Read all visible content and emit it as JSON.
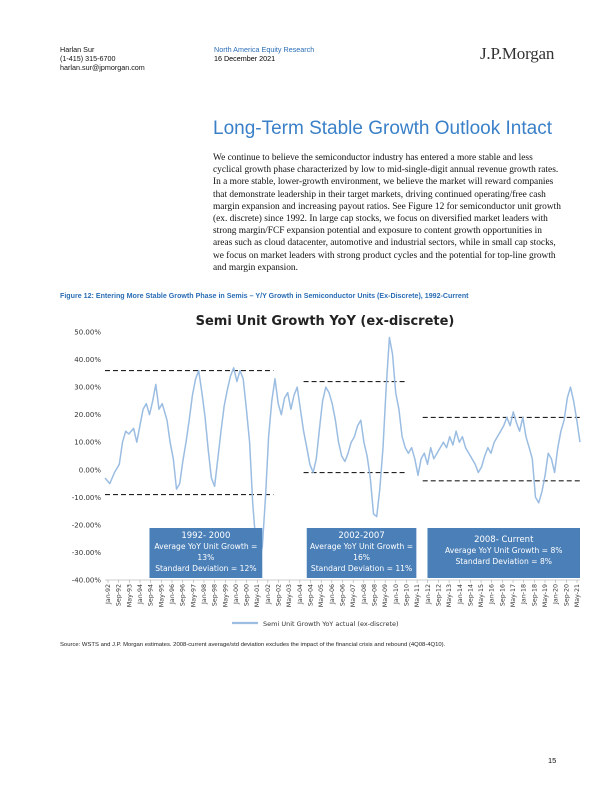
{
  "header": {
    "analyst_name": "Harlan Sur",
    "analyst_phone": "(1-415) 315-6700",
    "analyst_email": "harlan.sur@jpmorgan.com",
    "department": "North America Equity Research",
    "date": "16 December 2021",
    "logo": "J.P.Morgan"
  },
  "section_title": "Long-Term Stable Growth Outlook Intact",
  "body_paragraph": "We continue to believe the semiconductor industry has entered a more stable and less cyclical growth phase characterized by low to mid-single-digit annual revenue growth rates. In a more stable, lower-growth environment, we believe the market will reward companies that demonstrate leadership in their target markets, driving continued operating/free cash margin expansion and increasing payout ratios. See Figure 12 for semiconductor unit growth (ex. discrete) since 1992. In large cap stocks, we focus on diversified market leaders with strong margin/FCF expansion potential and exposure to content growth opportunities in areas such as cloud datacenter, automotive and industrial sectors, while in small cap stocks, we focus on market leaders with strong product cycles and the potential for top-line growth and margin expansion.",
  "figure_caption": "Figure 12: Entering More Stable Growth Phase in Semis – Y/Y Growth in Semiconductor Units (Ex-Discrete), 1992-Current",
  "source_note": "Source: WSTS and J.P. Morgan estimates. 2008-current average/std deviation excludes the impact of the financial crisis and rebound (4Q08-4Q10).",
  "page_number": "15",
  "colors": {
    "accent_blue": "#3a80c8",
    "series_line": "#9bbde2",
    "annotation_box": "#4a7fb8",
    "dashed_lines": "#222222"
  },
  "chart_data": {
    "type": "line",
    "title": "Semi Unit Growth YoY (ex-discrete)",
    "ylim": [
      -40,
      50
    ],
    "yticks": [
      50,
      40,
      30,
      20,
      10,
      0,
      -10,
      -20,
      -30,
      -40
    ],
    "ytick_labels": [
      "50.00%",
      "40.00%",
      "30.00%",
      "20.00%",
      "10.00%",
      "0.00%",
      "-10.00%",
      "-20.00%",
      "-30.00%",
      "-40.00%"
    ],
    "xlim": [
      1992.0,
      2021.9
    ],
    "x_tick_labels": [
      "Jan-92",
      "Sep-92",
      "May-93",
      "Jan-94",
      "Sep-94",
      "May-95",
      "Jan-96",
      "Sep-96",
      "May-97",
      "Jan-98",
      "Sep-98",
      "May-99",
      "Jan-00",
      "Sep-00",
      "May-01",
      "Jan-02",
      "Sep-02",
      "May-03",
      "Jan-04",
      "Sep-04",
      "May-05",
      "Jan-06",
      "Sep-06",
      "May-07",
      "Jan-08",
      "Sep-08",
      "May-09",
      "Jan-10",
      "Sep-10",
      "May-11",
      "Jan-12",
      "Sep-12",
      "May-13",
      "Jan-14",
      "Sep-14",
      "May-15",
      "Jan-16",
      "Sep-16",
      "May-17",
      "Jan-18",
      "Sep-18",
      "May-19",
      "Jan-20",
      "Sep-20",
      "May-21"
    ],
    "legend": "Semi Unit Growth YoY actual (ex-discrete)",
    "legend_position": "bottom",
    "grid": false,
    "series": [
      {
        "name": "Semi Unit Growth YoY actual (ex-discrete)",
        "points": [
          [
            1992.0,
            -3
          ],
          [
            1992.3,
            -5
          ],
          [
            1992.6,
            -1
          ],
          [
            1992.9,
            2
          ],
          [
            1993.1,
            10
          ],
          [
            1993.3,
            14
          ],
          [
            1993.5,
            13
          ],
          [
            1993.8,
            15
          ],
          [
            1994.0,
            10
          ],
          [
            1994.2,
            16
          ],
          [
            1994.4,
            22
          ],
          [
            1994.6,
            24
          ],
          [
            1994.8,
            20
          ],
          [
            1995.0,
            25
          ],
          [
            1995.2,
            31
          ],
          [
            1995.4,
            22
          ],
          [
            1995.6,
            24
          ],
          [
            1995.9,
            18
          ],
          [
            1996.1,
            10
          ],
          [
            1996.3,
            4
          ],
          [
            1996.5,
            -7
          ],
          [
            1996.7,
            -5
          ],
          [
            1996.9,
            3
          ],
          [
            1997.1,
            10
          ],
          [
            1997.3,
            18
          ],
          [
            1997.5,
            27
          ],
          [
            1997.7,
            33
          ],
          [
            1997.9,
            36
          ],
          [
            1998.1,
            28
          ],
          [
            1998.3,
            19
          ],
          [
            1998.5,
            7
          ],
          [
            1998.7,
            -3
          ],
          [
            1998.9,
            -6
          ],
          [
            1999.1,
            4
          ],
          [
            1999.3,
            14
          ],
          [
            1999.5,
            23
          ],
          [
            1999.7,
            29
          ],
          [
            1999.9,
            34
          ],
          [
            2000.1,
            37
          ],
          [
            2000.3,
            32
          ],
          [
            2000.5,
            36
          ],
          [
            2000.7,
            33
          ],
          [
            2000.9,
            22
          ],
          [
            2001.1,
            10
          ],
          [
            2001.3,
            -12
          ],
          [
            2001.5,
            -27
          ],
          [
            2001.7,
            -32
          ],
          [
            2001.9,
            -28
          ],
          [
            2002.1,
            -10
          ],
          [
            2002.3,
            12
          ],
          [
            2002.5,
            25
          ],
          [
            2002.7,
            33
          ],
          [
            2002.9,
            24
          ],
          [
            2003.1,
            20
          ],
          [
            2003.3,
            26
          ],
          [
            2003.5,
            28
          ],
          [
            2003.7,
            22
          ],
          [
            2003.9,
            27
          ],
          [
            2004.1,
            30
          ],
          [
            2004.3,
            22
          ],
          [
            2004.5,
            14
          ],
          [
            2004.7,
            8
          ],
          [
            2004.9,
            2
          ],
          [
            2005.1,
            -1
          ],
          [
            2005.3,
            4
          ],
          [
            2005.5,
            15
          ],
          [
            2005.7,
            25
          ],
          [
            2005.9,
            30
          ],
          [
            2006.1,
            28
          ],
          [
            2006.3,
            24
          ],
          [
            2006.5,
            18
          ],
          [
            2006.7,
            10
          ],
          [
            2006.9,
            5
          ],
          [
            2007.1,
            3
          ],
          [
            2007.3,
            6
          ],
          [
            2007.5,
            10
          ],
          [
            2007.7,
            12
          ],
          [
            2007.9,
            16
          ],
          [
            2008.1,
            18
          ],
          [
            2008.3,
            10
          ],
          [
            2008.5,
            5
          ],
          [
            2008.7,
            -3
          ],
          [
            2008.9,
            -16
          ],
          [
            2009.1,
            -17
          ],
          [
            2009.3,
            -7
          ],
          [
            2009.5,
            8
          ],
          [
            2009.7,
            30
          ],
          [
            2009.9,
            48
          ],
          [
            2010.1,
            42
          ],
          [
            2010.3,
            28
          ],
          [
            2010.5,
            22
          ],
          [
            2010.7,
            12
          ],
          [
            2010.9,
            8
          ],
          [
            2011.1,
            6
          ],
          [
            2011.3,
            8
          ],
          [
            2011.5,
            4
          ],
          [
            2011.7,
            -2
          ],
          [
            2011.9,
            4
          ],
          [
            2012.1,
            6
          ],
          [
            2012.3,
            2
          ],
          [
            2012.5,
            8
          ],
          [
            2012.7,
            4
          ],
          [
            2012.9,
            6
          ],
          [
            2013.1,
            8
          ],
          [
            2013.3,
            10
          ],
          [
            2013.5,
            8
          ],
          [
            2013.7,
            12
          ],
          [
            2013.9,
            9
          ],
          [
            2014.1,
            14
          ],
          [
            2014.3,
            10
          ],
          [
            2014.5,
            12
          ],
          [
            2014.7,
            8
          ],
          [
            2014.9,
            6
          ],
          [
            2015.1,
            4
          ],
          [
            2015.3,
            2
          ],
          [
            2015.5,
            -1
          ],
          [
            2015.7,
            1
          ],
          [
            2015.9,
            5
          ],
          [
            2016.1,
            8
          ],
          [
            2016.3,
            6
          ],
          [
            2016.5,
            10
          ],
          [
            2016.7,
            12
          ],
          [
            2016.9,
            14
          ],
          [
            2017.1,
            16
          ],
          [
            2017.3,
            19
          ],
          [
            2017.5,
            16
          ],
          [
            2017.7,
            21
          ],
          [
            2017.9,
            17
          ],
          [
            2018.1,
            14
          ],
          [
            2018.3,
            19
          ],
          [
            2018.5,
            12
          ],
          [
            2018.7,
            8
          ],
          [
            2018.9,
            4
          ],
          [
            2019.1,
            -10
          ],
          [
            2019.3,
            -12
          ],
          [
            2019.5,
            -8
          ],
          [
            2019.7,
            -2
          ],
          [
            2019.9,
            6
          ],
          [
            2020.1,
            4
          ],
          [
            2020.3,
            -1
          ],
          [
            2020.5,
            8
          ],
          [
            2020.7,
            14
          ],
          [
            2020.9,
            18
          ],
          [
            2021.1,
            26
          ],
          [
            2021.3,
            30
          ],
          [
            2021.5,
            25
          ],
          [
            2021.7,
            18
          ],
          [
            2021.9,
            10
          ]
        ]
      }
    ],
    "reference_lines": [
      {
        "y": 36,
        "x_from": 1992.0,
        "x_to": 2002.6
      },
      {
        "y": -9,
        "x_from": 1992.0,
        "x_to": 2002.6
      },
      {
        "y": 32,
        "x_from": 2004.5,
        "x_to": 2011.0
      },
      {
        "y": -1,
        "x_from": 2004.5,
        "x_to": 2011.0
      },
      {
        "y": 19,
        "x_from": 2012.0,
        "x_to": 2021.9
      },
      {
        "y": -4,
        "x_from": 2012.0,
        "x_to": 2021.9
      }
    ],
    "annotations": [
      {
        "period": "1992- 2000",
        "line1": "Average YoY Unit Growth =",
        "line2": "13%",
        "line3": "Standard Deviation = 12%",
        "x_from": 1994.8,
        "x_to": 2001.9
      },
      {
        "period": "2002-2007",
        "line1": "Average YoY Unit Growth =",
        "line2": "16%",
        "line3": "Standard Deviation = 11%",
        "x_from": 2004.7,
        "x_to": 2011.6
      },
      {
        "period": "2008- Current",
        "line1": "Average YoY Unit Growth = 8%",
        "line2": "Standard Deviation = 8%",
        "line3": "",
        "x_from": 2012.3,
        "x_to": 2021.9
      }
    ]
  }
}
